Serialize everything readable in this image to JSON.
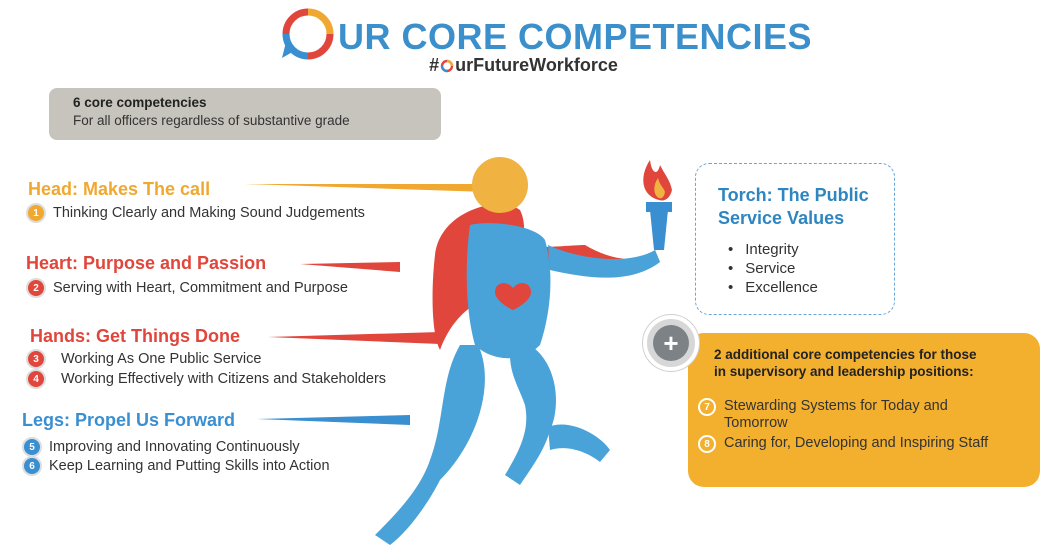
{
  "header": {
    "title": "UR CORE COMPETENCIES",
    "hashtag_prefix": "#",
    "hashtag_suffix": "urFutureWorkforce"
  },
  "intro": {
    "line1": "6 core competencies",
    "line2": "For all officers regardless of substantive grade"
  },
  "sections": [
    {
      "title": "Head: Makes The call",
      "color": "#f0a830",
      "items": [
        {
          "num": "1",
          "text": "Thinking Clearly and Making Sound Judgements"
        }
      ]
    },
    {
      "title": "Heart: Purpose and Passion",
      "color": "#e0463b",
      "items": [
        {
          "num": "2",
          "text": "Serving with Heart, Commitment and Purpose"
        }
      ]
    },
    {
      "title": "Hands: Get Things Done",
      "color": "#e0463b",
      "items": [
        {
          "num": "3",
          "text": "Working As One Public Service"
        },
        {
          "num": "4",
          "text": "Working Effectively with Citizens and Stakeholders"
        }
      ]
    },
    {
      "title": "Legs: Propel Us Forward",
      "color": "#3a8fd0",
      "items": [
        {
          "num": "5",
          "text": "Improving and Innovating Continuously"
        },
        {
          "num": "6",
          "text": "Keep Learning and Putting Skills into Action"
        }
      ]
    }
  ],
  "torch": {
    "title_line1": "Torch: The Public",
    "title_line2": "Service Values",
    "values": [
      "Integrity",
      "Service",
      "Excellence"
    ]
  },
  "additional": {
    "plus": "+",
    "title_line1": "2 additional core competencies for those",
    "title_line2": "in supervisory and leadership positions:",
    "items": [
      {
        "num": "7",
        "text": "Stewarding Systems for Today and Tomorrow"
      },
      {
        "num": "8",
        "text": "Caring for, Developing and Inspiring Staff"
      }
    ]
  },
  "colors": {
    "blue": "#3a8fd0",
    "red": "#e0463b",
    "orange": "#f0a830",
    "grey": "#c6c4bc"
  }
}
